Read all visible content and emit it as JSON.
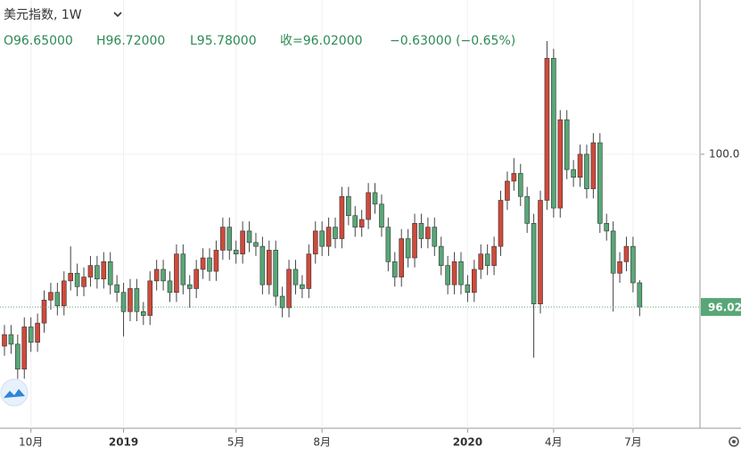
{
  "header": {
    "title": "美元指数, 1W",
    "open": "O96.65000",
    "high": "H96.72000",
    "low": "L95.78000",
    "close": "收=96.02000",
    "change": "−0.63000 (−0.65%)"
  },
  "chart_data": {
    "type": "candlestick",
    "categories": [
      null,
      null,
      null,
      null,
      "10月",
      null,
      null,
      null,
      null,
      null,
      null,
      null,
      null,
      null,
      null,
      null,
      null,
      null,
      "2019",
      null,
      null,
      null,
      null,
      null,
      null,
      null,
      null,
      null,
      null,
      null,
      null,
      null,
      null,
      null,
      null,
      "5月",
      null,
      null,
      null,
      null,
      null,
      null,
      null,
      null,
      null,
      null,
      null,
      null,
      "8月",
      null,
      null,
      null,
      null,
      null,
      null,
      null,
      null,
      null,
      null,
      null,
      null,
      null,
      null,
      null,
      null,
      null,
      null,
      null,
      null,
      null,
      "2020",
      null,
      null,
      null,
      null,
      null,
      null,
      null,
      null,
      null,
      null,
      null,
      null,
      "4月",
      null,
      null,
      null,
      null,
      null,
      null,
      null,
      null,
      null,
      null,
      null,
      "7月",
      null
    ],
    "open": [
      95.0,
      95.3,
      95.05,
      94.4,
      95.5,
      95.1,
      95.6,
      96.2,
      96.4,
      96.05,
      96.7,
      96.9,
      96.55,
      96.8,
      97.1,
      96.75,
      97.2,
      96.6,
      96.4,
      95.9,
      96.5,
      95.9,
      95.8,
      96.7,
      97.0,
      96.7,
      96.4,
      97.4,
      96.6,
      96.5,
      97.0,
      97.3,
      96.95,
      97.5,
      98.1,
      97.5,
      97.4,
      98.0,
      97.7,
      97.6,
      96.6,
      97.5,
      96.3,
      96.0,
      97.0,
      96.6,
      96.5,
      97.4,
      98.0,
      97.6,
      98.1,
      97.8,
      98.9,
      98.4,
      98.1,
      98.3,
      99.0,
      98.7,
      98.1,
      97.2,
      96.8,
      97.8,
      97.3,
      98.2,
      97.8,
      98.1,
      97.6,
      97.1,
      96.6,
      97.2,
      96.6,
      96.4,
      97.0,
      97.4,
      97.1,
      97.6,
      98.8,
      99.3,
      99.5,
      98.9,
      98.2,
      96.1,
      98.8,
      102.5,
      98.6,
      100.9,
      99.6,
      99.4,
      100.0,
      99.1,
      100.3,
      98.2,
      98.0,
      96.9,
      97.2,
      97.6,
      96.65
    ],
    "high": [
      95.55,
      95.55,
      95.3,
      95.75,
      95.75,
      95.85,
      96.45,
      96.65,
      96.65,
      96.95,
      97.6,
      97.15,
      97.05,
      97.35,
      97.35,
      97.45,
      97.45,
      96.85,
      96.65,
      96.75,
      96.75,
      96.15,
      96.95,
      97.25,
      97.25,
      96.95,
      97.65,
      97.65,
      96.85,
      97.25,
      97.55,
      97.55,
      97.75,
      98.35,
      98.35,
      97.75,
      98.25,
      98.25,
      97.95,
      97.85,
      97.75,
      97.75,
      96.55,
      97.25,
      97.25,
      96.85,
      97.65,
      98.25,
      98.25,
      98.35,
      98.35,
      99.15,
      99.15,
      98.65,
      98.55,
      99.25,
      99.25,
      98.95,
      98.35,
      97.45,
      98.05,
      98.05,
      98.45,
      98.45,
      98.35,
      98.35,
      97.85,
      97.35,
      97.45,
      97.45,
      96.85,
      97.25,
      97.65,
      97.65,
      97.85,
      99.05,
      99.55,
      99.9,
      99.75,
      99.15,
      98.45,
      99.05,
      102.95,
      102.75,
      101.15,
      101.15,
      99.85,
      100.25,
      100.25,
      100.55,
      100.55,
      98.45,
      98.25,
      97.45,
      97.85,
      97.85,
      96.72
    ],
    "low": [
      94.75,
      94.8,
      94.15,
      94.15,
      94.85,
      94.85,
      95.35,
      95.95,
      95.8,
      95.8,
      96.45,
      96.3,
      96.3,
      96.55,
      96.5,
      96.5,
      96.35,
      96.15,
      95.25,
      95.65,
      95.65,
      95.55,
      95.55,
      96.45,
      96.45,
      96.15,
      96.15,
      96.35,
      96.0,
      96.25,
      96.75,
      96.7,
      96.7,
      97.25,
      97.25,
      97.15,
      97.15,
      97.45,
      97.35,
      96.35,
      96.35,
      96.05,
      95.75,
      95.75,
      96.35,
      96.25,
      96.25,
      97.15,
      97.35,
      97.35,
      97.55,
      97.55,
      98.15,
      97.85,
      97.85,
      98.05,
      98.45,
      97.85,
      96.95,
      96.55,
      96.55,
      97.05,
      97.05,
      97.55,
      97.55,
      97.35,
      96.85,
      96.35,
      96.35,
      96.35,
      96.15,
      96.15,
      96.75,
      96.85,
      96.85,
      97.35,
      98.55,
      99.05,
      98.65,
      97.95,
      94.7,
      95.85,
      98.55,
      98.35,
      98.35,
      99.35,
      99.15,
      99.15,
      98.85,
      98.85,
      97.95,
      97.75,
      95.9,
      96.65,
      96.95,
      96.4,
      95.78
    ],
    "close": [
      95.3,
      95.05,
      94.4,
      95.5,
      95.1,
      95.6,
      96.2,
      96.4,
      96.05,
      96.7,
      96.9,
      96.55,
      96.8,
      97.1,
      96.75,
      97.2,
      96.6,
      96.4,
      95.9,
      96.5,
      95.9,
      95.8,
      96.7,
      97.0,
      96.7,
      96.4,
      97.4,
      96.6,
      96.5,
      97.0,
      97.3,
      96.95,
      97.5,
      98.1,
      97.5,
      97.4,
      98.0,
      97.7,
      97.6,
      96.6,
      97.5,
      96.3,
      96.0,
      97.0,
      96.6,
      96.5,
      97.4,
      98.0,
      97.6,
      98.1,
      97.8,
      98.9,
      98.4,
      98.1,
      98.3,
      99.0,
      98.7,
      98.1,
      97.2,
      96.8,
      97.8,
      97.3,
      98.2,
      97.8,
      98.1,
      97.6,
      97.1,
      96.6,
      97.2,
      96.6,
      96.4,
      97.0,
      97.4,
      97.1,
      97.6,
      98.8,
      99.3,
      99.5,
      98.9,
      98.2,
      96.1,
      98.8,
      102.5,
      98.6,
      100.9,
      99.6,
      99.4,
      100.0,
      99.1,
      100.3,
      98.2,
      98.0,
      96.9,
      97.2,
      97.6,
      96.65,
      96.02
    ],
    "up_color": "#cf4a3b",
    "down_color": "#58a777",
    "ylim": [
      92.86,
      104.02
    ],
    "yticks": [
      {
        "value": 100,
        "label": "100.0"
      }
    ],
    "last_price_label": "96.02",
    "grid": true
  }
}
